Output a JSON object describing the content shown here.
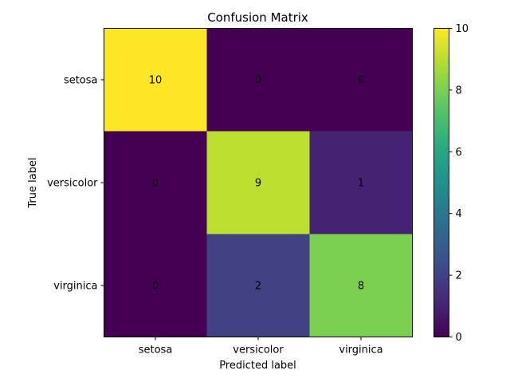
{
  "chart_data": {
    "type": "heatmap",
    "title": "Confusion Matrix",
    "xlabel": "Predicted label",
    "ylabel": "True label",
    "x_categories": [
      "setosa",
      "versicolor",
      "virginica"
    ],
    "y_categories": [
      "setosa",
      "versicolor",
      "virginica"
    ],
    "values": [
      [
        10,
        0,
        0
      ],
      [
        0,
        9,
        1
      ],
      [
        0,
        2,
        8
      ]
    ],
    "colorscale": "viridis",
    "vmin": 0,
    "vmax": 10,
    "colorbar_ticks": [
      "0",
      "2",
      "4",
      "6",
      "8",
      "10"
    ]
  }
}
